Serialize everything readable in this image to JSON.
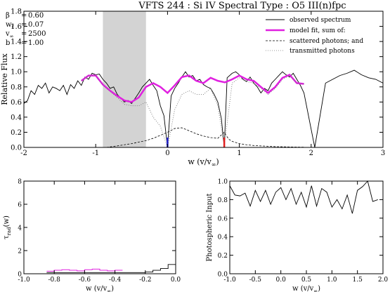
{
  "title": "VFTS 244 : Si IV     Spectral Type : O5 III(n)fpc",
  "params": [
    {
      "sym": "β",
      "sub": "",
      "eq": "=",
      "val": "0.60"
    },
    {
      "sym": "w",
      "sub": "f",
      "eq": "=",
      "val": "0.07"
    },
    {
      "sym": "v",
      "sub": "∞",
      "eq": "=",
      "val": "2500"
    },
    {
      "sym": "b",
      "sub": "",
      "eq": "=",
      "val": "1.00"
    }
  ],
  "legend": {
    "observed": "observed spectrum",
    "model": "model fit, sum of:",
    "scattered": "scattered photons; and",
    "transmitted": "transmitted photons"
  },
  "colors": {
    "model": "#e020e0",
    "blue_marker": "#2020d0",
    "red_marker": "#e02020",
    "shade": "#d3d3d3"
  },
  "chart_data": [
    {
      "id": "main",
      "type": "line",
      "title": "VFTS 244 : Si IV     Spectral Type : O5 III(n)fpc",
      "xlabel": "w (v/v∞)",
      "ylabel": "Relative Flux",
      "xlim": [
        -2,
        3
      ],
      "ylim": [
        0.0,
        1.8
      ],
      "xticks": [
        -2,
        -1,
        0,
        1,
        2,
        3
      ],
      "yticks": [
        "0.0",
        "0.2",
        "0.4",
        "0.6",
        "0.8",
        "1.0",
        "1.2",
        "1.4",
        "1.6",
        "1.8"
      ],
      "shaded_band": [
        -0.9,
        -0.3
      ],
      "markers": [
        {
          "x": 0.0,
          "y0": 0.0,
          "y1": 0.13,
          "color": "blue"
        },
        {
          "x": 0.79,
          "y0": 0.0,
          "y1": 0.13,
          "color": "red"
        }
      ],
      "series": [
        {
          "name": "observed spectrum",
          "style": "solid-black",
          "x": [
            -2.0,
            -1.95,
            -1.9,
            -1.85,
            -1.8,
            -1.75,
            -1.7,
            -1.65,
            -1.6,
            -1.55,
            -1.5,
            -1.45,
            -1.4,
            -1.35,
            -1.3,
            -1.25,
            -1.2,
            -1.15,
            -1.1,
            -1.05,
            -1.0,
            -0.95,
            -0.9,
            -0.85,
            -0.8,
            -0.75,
            -0.7,
            -0.65,
            -0.6,
            -0.55,
            -0.5,
            -0.45,
            -0.4,
            -0.35,
            -0.3,
            -0.25,
            -0.2,
            -0.15,
            -0.1,
            -0.05,
            0.0,
            0.05,
            0.1,
            0.15,
            0.2,
            0.25,
            0.3,
            0.35,
            0.4,
            0.45,
            0.5,
            0.55,
            0.6,
            0.65,
            0.7,
            0.75,
            0.79,
            0.83,
            0.9,
            0.95,
            1.0,
            1.05,
            1.1,
            1.15,
            1.2,
            1.25,
            1.3,
            1.35,
            1.4,
            1.45,
            1.5,
            1.55,
            1.6,
            1.65,
            1.7,
            1.75,
            1.8,
            1.85,
            1.9,
            2.05,
            2.2,
            2.3,
            2.4,
            2.5,
            2.6,
            2.7,
            2.8,
            2.9,
            3.0
          ],
          "y": [
            0.58,
            0.62,
            0.75,
            0.7,
            0.82,
            0.78,
            0.85,
            0.72,
            0.8,
            0.78,
            0.75,
            0.82,
            0.7,
            0.83,
            0.78,
            0.88,
            0.82,
            0.93,
            0.9,
            0.98,
            0.96,
            0.97,
            0.9,
            0.85,
            0.78,
            0.8,
            0.7,
            0.65,
            0.6,
            0.62,
            0.58,
            0.65,
            0.72,
            0.8,
            0.85,
            0.9,
            0.82,
            0.75,
            0.55,
            0.42,
            0.0,
            0.68,
            0.78,
            0.85,
            0.93,
            1.0,
            0.93,
            0.95,
            0.88,
            0.9,
            0.83,
            0.8,
            0.78,
            0.7,
            0.6,
            0.38,
            0.0,
            0.92,
            0.98,
            1.0,
            0.96,
            0.9,
            0.87,
            0.93,
            0.85,
            0.8,
            0.72,
            0.78,
            0.75,
            0.85,
            0.9,
            0.95,
            1.0,
            0.96,
            0.93,
            0.98,
            0.9,
            0.82,
            0.72,
            0.0,
            0.85,
            0.9,
            0.95,
            0.98,
            1.02,
            0.96,
            0.92,
            0.9,
            0.85
          ]
        },
        {
          "name": "model fit, sum of:",
          "style": "thick-magenta",
          "x": [
            -1.2,
            -1.1,
            -1.0,
            -0.9,
            -0.8,
            -0.7,
            -0.6,
            -0.5,
            -0.4,
            -0.3,
            -0.2,
            -0.1,
            0.0,
            0.1,
            0.2,
            0.3,
            0.4,
            0.5,
            0.6,
            0.7,
            0.8,
            0.9,
            1.0,
            1.1,
            1.2,
            1.3,
            1.4,
            1.5,
            1.6,
            1.7,
            1.8,
            1.9
          ],
          "y": [
            0.88,
            0.95,
            0.95,
            0.83,
            0.75,
            0.68,
            0.62,
            0.6,
            0.66,
            0.8,
            0.85,
            0.8,
            0.72,
            0.82,
            0.93,
            0.95,
            0.88,
            0.85,
            0.92,
            0.88,
            0.86,
            0.9,
            0.95,
            0.9,
            0.88,
            0.8,
            0.72,
            0.8,
            0.92,
            0.96,
            0.85,
            0.84
          ]
        },
        {
          "name": "scattered photons; and",
          "style": "dashed",
          "x": [
            -0.85,
            -0.7,
            -0.5,
            -0.3,
            -0.2,
            -0.1,
            0.0,
            0.1,
            0.2,
            0.3,
            0.4,
            0.5,
            0.6,
            0.7,
            0.79,
            0.85,
            0.9,
            1.0,
            1.1,
            1.2,
            1.3,
            1.4,
            1.5,
            1.6,
            1.75,
            1.9
          ],
          "y": [
            0.0,
            0.02,
            0.05,
            0.09,
            0.12,
            0.16,
            0.2,
            0.25,
            0.26,
            0.22,
            0.18,
            0.15,
            0.13,
            0.12,
            0.2,
            0.11,
            0.08,
            0.05,
            0.035,
            0.025,
            0.02,
            0.015,
            0.01,
            0.008,
            0.005,
            0.003
          ]
        },
        {
          "name": "transmitted photons",
          "style": "dotted",
          "x": [
            -1.2,
            -1.1,
            -1.0,
            -0.9,
            -0.8,
            -0.7,
            -0.6,
            -0.5,
            -0.4,
            -0.3,
            -0.2,
            -0.1,
            0.0,
            0.1,
            0.2,
            0.3,
            0.4,
            0.5,
            0.6,
            0.7,
            0.79,
            0.9,
            1.0,
            1.1,
            1.2,
            1.3,
            1.4,
            1.5,
            1.6,
            1.7,
            1.8,
            1.9
          ],
          "y": [
            0.88,
            0.95,
            0.95,
            0.82,
            0.74,
            0.66,
            0.57,
            0.55,
            0.55,
            0.6,
            0.4,
            0.28,
            0.0,
            0.5,
            0.7,
            0.75,
            0.7,
            0.7,
            0.78,
            0.55,
            0.02,
            0.85,
            0.92,
            0.87,
            0.85,
            0.78,
            0.7,
            0.78,
            0.9,
            0.95,
            0.85,
            0.84
          ]
        }
      ]
    },
    {
      "id": "tau",
      "type": "line",
      "xlabel": "w (v/v∞)",
      "ylabel": "τrad(w)",
      "xlim": [
        -1.0,
        0.0
      ],
      "ylim": [
        0,
        8
      ],
      "xticks": [
        "-1.0",
        "-0.8",
        "-0.6",
        "-0.4",
        "-0.2",
        "0.0"
      ],
      "yticks": [
        "0",
        "2",
        "4",
        "6",
        "8"
      ],
      "series": [
        {
          "name": "",
          "style": "step-black",
          "x": [
            -0.85,
            -0.8,
            -0.75,
            -0.7,
            -0.65,
            -0.6,
            -0.55,
            -0.5,
            -0.45,
            -0.4,
            -0.35,
            -0.3,
            -0.25,
            -0.2,
            -0.15,
            -0.1,
            -0.05,
            0.0
          ],
          "y": [
            0.1,
            0.1,
            0.1,
            0.1,
            0.1,
            0.1,
            0.1,
            0.1,
            0.1,
            0.1,
            0.1,
            0.1,
            0.1,
            0.15,
            0.3,
            0.45,
            0.8,
            0.8
          ]
        },
        {
          "name": "",
          "style": "step-magenta",
          "x": [
            -0.85,
            -0.8,
            -0.75,
            -0.7,
            -0.65,
            -0.6,
            -0.55,
            -0.5,
            -0.45,
            -0.4,
            -0.35
          ],
          "y": [
            0.22,
            0.3,
            0.35,
            0.3,
            0.25,
            0.35,
            0.4,
            0.3,
            0.25,
            0.3,
            0.3
          ]
        }
      ]
    },
    {
      "id": "photo",
      "type": "line",
      "xlabel": "w (v/v∞)",
      "ylabel": "Photospheric Input",
      "xlim": [
        -1.0,
        2.0
      ],
      "ylim": [
        0.0,
        1.0
      ],
      "xticks": [
        "-1.0",
        "-0.5",
        "0.0",
        "0.5",
        "1.0",
        "1.5",
        "2.0"
      ],
      "yticks": [
        "0.0",
        "0.2",
        "0.4",
        "0.6",
        "0.8",
        "1.0"
      ],
      "series": [
        {
          "name": "",
          "style": "solid-black",
          "x": [
            -1.0,
            -0.9,
            -0.8,
            -0.7,
            -0.6,
            -0.5,
            -0.4,
            -0.3,
            -0.2,
            -0.1,
            0.0,
            0.1,
            0.2,
            0.3,
            0.4,
            0.5,
            0.6,
            0.7,
            0.8,
            0.9,
            1.0,
            1.1,
            1.2,
            1.3,
            1.4,
            1.5,
            1.6,
            1.7,
            1.8,
            1.9
          ],
          "y": [
            0.95,
            0.85,
            0.84,
            0.87,
            0.73,
            0.9,
            0.78,
            0.9,
            0.75,
            0.88,
            0.93,
            0.8,
            0.92,
            0.75,
            0.88,
            0.72,
            0.95,
            0.73,
            0.92,
            0.88,
            0.72,
            0.8,
            0.7,
            0.85,
            0.65,
            0.9,
            0.94,
            1.0,
            0.78,
            0.8
          ]
        }
      ]
    }
  ]
}
